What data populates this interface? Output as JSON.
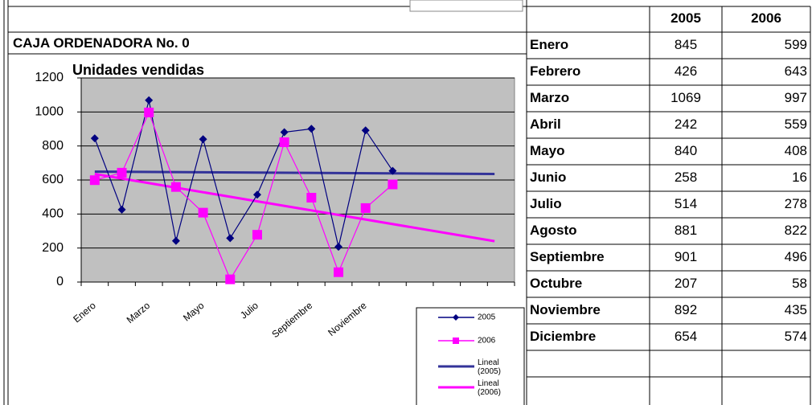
{
  "sheet": {
    "title": "CAJA ORDENADORA No. 0"
  },
  "table": {
    "columns": [
      "2005",
      "2006"
    ],
    "rows": [
      [
        "Enero",
        845,
        599
      ],
      [
        "Febrero",
        426,
        643
      ],
      [
        "Marzo",
        1069,
        997
      ],
      [
        "Abril",
        242,
        559
      ],
      [
        "Mayo",
        840,
        408
      ],
      [
        "Junio",
        258,
        16
      ],
      [
        "Julio",
        514,
        278
      ],
      [
        "Agosto",
        881,
        822
      ],
      [
        "Septiembre",
        901,
        496
      ],
      [
        "Octubre",
        207,
        58
      ],
      [
        "Noviembre",
        892,
        435
      ],
      [
        "Diciembre",
        654,
        574
      ]
    ]
  },
  "chart_data": {
    "type": "line",
    "title": "Unidades vendidas",
    "categories": [
      "Enero",
      null,
      "Marzo",
      null,
      "Mayo",
      null,
      "Julio",
      null,
      "Septiembre",
      null,
      "Noviembre",
      null,
      null,
      null,
      null,
      null
    ],
    "series": [
      {
        "name": "2005",
        "color": "#000080",
        "marker": "diamond",
        "trendline": {
          "name": "Lineal (2005)",
          "color": "#333399"
        },
        "values": [
          845,
          426,
          1069,
          242,
          840,
          258,
          514,
          881,
          901,
          207,
          892,
          654,
          null,
          null,
          null,
          null
        ]
      },
      {
        "name": "2006",
        "color": "#ff00ff",
        "marker": "square",
        "trendline": {
          "name": "Lineal (2006)",
          "color": "#ff00ff"
        },
        "values": [
          599,
          643,
          997,
          559,
          408,
          16,
          278,
          822,
          496,
          58,
          435,
          574,
          null,
          null,
          null,
          null
        ]
      }
    ],
    "ylim": [
      0,
      1200
    ],
    "yticks": [
      0,
      200,
      400,
      600,
      800,
      1000,
      1200
    ],
    "grid": true,
    "legend": "bottom-right",
    "plot_background": "#c0c0c0"
  }
}
